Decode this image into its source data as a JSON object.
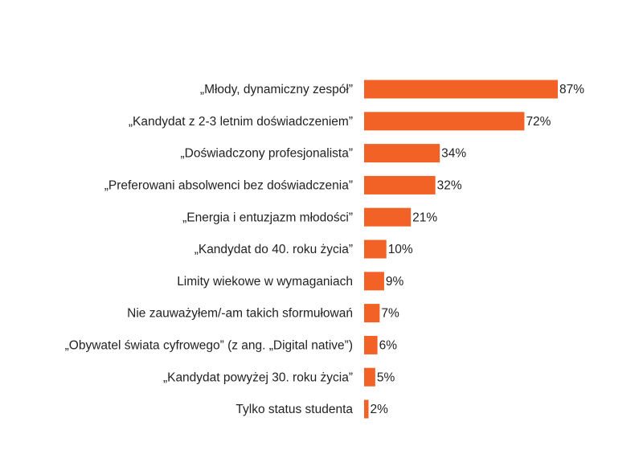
{
  "chart_data": {
    "type": "bar",
    "orientation": "horizontal",
    "categories": [
      "„Młody, dynamiczny zespół”",
      "„Kandydat z 2-3 letnim doświadczeniem”",
      "„Doświadczony profesjonalista”",
      "„Preferowani absolwenci bez doświadczenia”",
      "„Energia i entuzjazm młodości”",
      "„Kandydat do 40. roku życia”",
      "Limity wiekowe w wymaganiach",
      "Nie zauważyłem/-am takich sformułowań",
      "„Obywatel świata cyfrowego” (z ang. „Digital native”)",
      "„Kandydat powyżej 30. roku życia”",
      "Tylko status studenta"
    ],
    "values": [
      87,
      72,
      34,
      32,
      21,
      10,
      9,
      7,
      6,
      5,
      2
    ],
    "value_labels": [
      "87%",
      "72%",
      "34%",
      "32%",
      "21%",
      "10%",
      "9%",
      "7%",
      "6%",
      "5%",
      "2%"
    ],
    "color": "#f26126"
  }
}
